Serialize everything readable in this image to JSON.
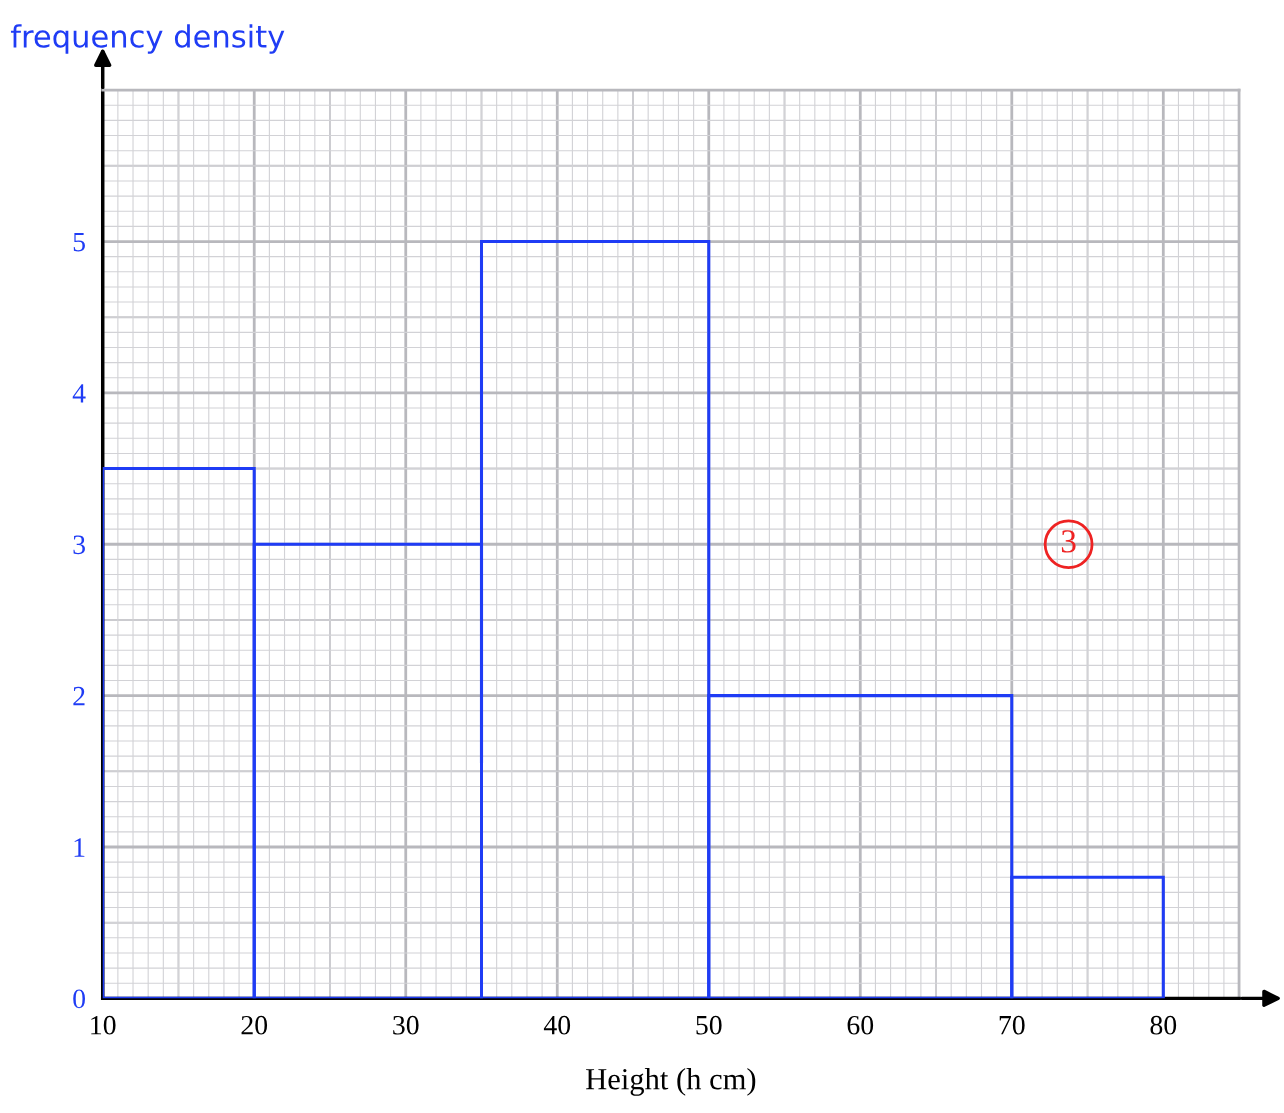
{
  "chart_data": {
    "type": "histogram",
    "bins": [
      10,
      20,
      35,
      50,
      70,
      80
    ],
    "values": [
      3.5,
      3,
      5,
      2,
      0.8
    ],
    "color": "#1f3cf5",
    "xlabel": "Height (h cm)",
    "ylabel": "frequency density",
    "xlim": [
      10,
      85
    ],
    "ylim": [
      0,
      6
    ],
    "xticks": [
      10,
      20,
      30,
      40,
      50,
      60,
      70,
      80
    ],
    "yticks": [
      0,
      1,
      2,
      3,
      4,
      5
    ],
    "grid": true,
    "annotations": [
      "3"
    ]
  }
}
